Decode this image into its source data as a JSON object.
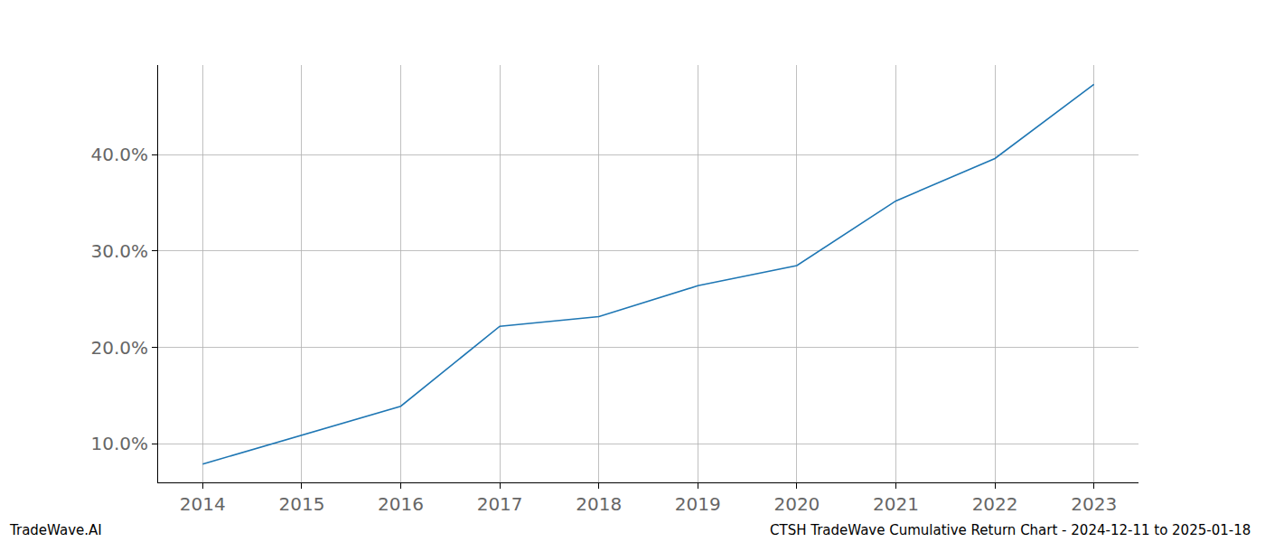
{
  "chart_data": {
    "type": "line",
    "x": [
      2014,
      2015,
      2016,
      2017,
      2018,
      2019,
      2020,
      2021,
      2022,
      2023
    ],
    "values": [
      7.9,
      10.9,
      13.9,
      22.2,
      23.2,
      26.4,
      28.5,
      35.2,
      39.6,
      47.3
    ],
    "color": "#1f77b4",
    "xlim": [
      2013.55,
      2023.45
    ],
    "xticks": [
      2014,
      2015,
      2016,
      2017,
      2018,
      2019,
      2020,
      2021,
      2022,
      2023
    ],
    "ylim": [
      6.0,
      49.3
    ],
    "yticks": [
      {
        "value": 10,
        "label": "10.0%"
      },
      {
        "value": 20,
        "label": "20.0%"
      },
      {
        "value": 30,
        "label": "30.0%"
      },
      {
        "value": 40,
        "label": "40.0%"
      }
    ],
    "grid": true,
    "annotations": [
      "TradeWave.AI",
      "CTSH TradeWave Cumulative Return Chart - 2024-12-11 to 2025-01-18"
    ]
  }
}
